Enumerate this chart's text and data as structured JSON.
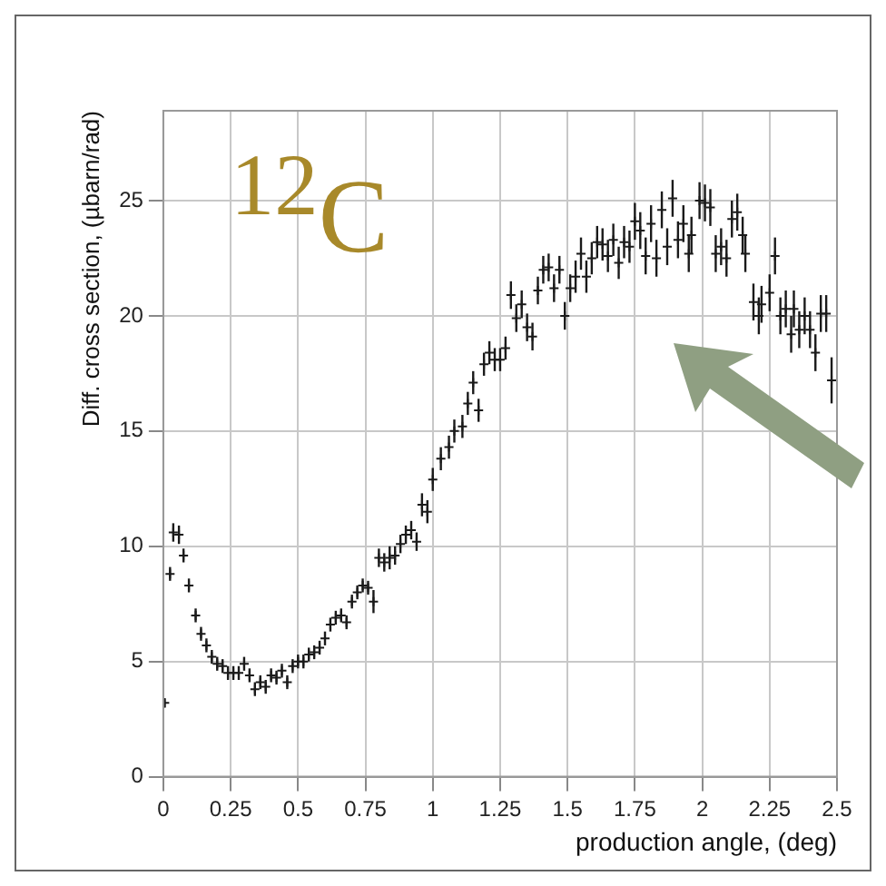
{
  "chart_data": {
    "type": "scatter",
    "xlabel": "production angle, (deg)",
    "ylabel": "Diff. cross section, (µbarn/rad)",
    "annotations": [
      "$^{12}$C"
    ],
    "x": [
      0.005,
      0.025,
      0.037,
      0.058,
      0.075,
      0.095,
      0.12,
      0.14,
      0.16,
      0.18,
      0.2,
      0.22,
      0.24,
      0.26,
      0.28,
      0.3,
      0.32,
      0.34,
      0.36,
      0.38,
      0.4,
      0.42,
      0.44,
      0.46,
      0.48,
      0.5,
      0.52,
      0.54,
      0.56,
      0.58,
      0.6,
      0.62,
      0.64,
      0.66,
      0.68,
      0.7,
      0.72,
      0.74,
      0.76,
      0.78,
      0.8,
      0.82,
      0.84,
      0.86,
      0.88,
      0.9,
      0.92,
      0.94,
      0.96,
      0.98,
      1.0,
      1.03,
      1.06,
      1.08,
      1.11,
      1.13,
      1.15,
      1.17,
      1.19,
      1.21,
      1.23,
      1.25,
      1.27,
      1.29,
      1.31,
      1.33,
      1.35,
      1.37,
      1.39,
      1.41,
      1.43,
      1.45,
      1.47,
      1.49,
      1.51,
      1.53,
      1.55,
      1.57,
      1.59,
      1.61,
      1.63,
      1.65,
      1.67,
      1.69,
      1.71,
      1.73,
      1.75,
      1.77,
      1.79,
      1.81,
      1.83,
      1.85,
      1.87,
      1.89,
      1.91,
      1.93,
      1.95,
      1.96,
      1.99,
      2.01,
      2.03,
      2.05,
      2.07,
      2.09,
      2.11,
      2.13,
      2.15,
      2.16,
      2.19,
      2.21,
      2.22,
      2.25,
      2.27,
      2.29,
      2.31,
      2.33,
      2.34,
      2.36,
      2.38,
      2.4,
      2.42,
      2.44,
      2.46,
      2.48
    ],
    "values": [
      3.2,
      8.8,
      10.6,
      10.5,
      9.6,
      8.3,
      7.0,
      6.2,
      5.7,
      5.2,
      4.9,
      4.8,
      4.5,
      4.5,
      4.5,
      4.9,
      4.4,
      3.8,
      4.1,
      3.9,
      4.4,
      4.3,
      4.6,
      4.1,
      4.8,
      5.0,
      5.0,
      5.3,
      5.4,
      5.6,
      6.0,
      6.6,
      6.9,
      7.0,
      6.7,
      7.6,
      8.0,
      8.3,
      8.2,
      7.6,
      9.5,
      9.3,
      9.5,
      9.6,
      10.1,
      10.5,
      10.7,
      10.2,
      11.8,
      11.5,
      12.9,
      13.8,
      14.3,
      15.0,
      15.2,
      16.2,
      17.1,
      15.9,
      17.9,
      18.4,
      18.1,
      18.1,
      18.6,
      20.9,
      19.9,
      20.5,
      19.5,
      19.1,
      21.1,
      22.0,
      22.1,
      21.2,
      22.0,
      20.0,
      21.2,
      21.7,
      22.7,
      21.7,
      22.5,
      23.2,
      23.1,
      22.6,
      23.3,
      22.3,
      23.2,
      23.0,
      24.1,
      23.7,
      22.6,
      24.0,
      22.5,
      24.6,
      23.0,
      25.1,
      23.3,
      24.0,
      22.7,
      23.5,
      25.0,
      24.9,
      24.7,
      22.7,
      23.0,
      22.5,
      24.2,
      24.5,
      23.5,
      22.7,
      20.6,
      20.0,
      20.5,
      21.0,
      22.6,
      20.0,
      20.3,
      19.2,
      20.3,
      19.4,
      20.0,
      19.4,
      18.4,
      20.1,
      20.1,
      17.2
    ],
    "errors": [
      0.2,
      0.3,
      0.4,
      0.4,
      0.3,
      0.3,
      0.3,
      0.3,
      0.3,
      0.3,
      0.3,
      0.3,
      0.3,
      0.3,
      0.3,
      0.3,
      0.3,
      0.3,
      0.3,
      0.3,
      0.3,
      0.3,
      0.3,
      0.3,
      0.3,
      0.3,
      0.3,
      0.3,
      0.3,
      0.3,
      0.3,
      0.3,
      0.3,
      0.3,
      0.3,
      0.3,
      0.3,
      0.3,
      0.3,
      0.5,
      0.4,
      0.4,
      0.5,
      0.4,
      0.4,
      0.4,
      0.4,
      0.4,
      0.5,
      0.5,
      0.5,
      0.5,
      0.5,
      0.5,
      0.5,
      0.5,
      0.5,
      0.5,
      0.5,
      0.5,
      0.5,
      0.5,
      0.5,
      0.6,
      0.6,
      0.6,
      0.6,
      0.6,
      0.6,
      0.6,
      0.6,
      0.6,
      0.6,
      0.6,
      0.6,
      0.7,
      0.7,
      0.7,
      0.7,
      0.7,
      0.7,
      0.7,
      0.7,
      0.7,
      0.7,
      0.7,
      0.8,
      0.8,
      0.8,
      0.8,
      0.8,
      0.8,
      0.8,
      0.8,
      0.8,
      0.8,
      0.8,
      0.8,
      0.8,
      0.8,
      0.8,
      0.8,
      0.8,
      0.8,
      0.8,
      0.8,
      0.8,
      0.8,
      0.8,
      0.8,
      0.8,
      0.8,
      0.8,
      0.8,
      0.8,
      0.8,
      0.8,
      0.8,
      0.8,
      0.8,
      0.8,
      0.8,
      0.8,
      1.0
    ],
    "color": "#1a1a1a",
    "marker": "cross",
    "grid": true,
    "xlim": [
      0,
      2.5
    ],
    "xticks": [
      0,
      0.25,
      0.5,
      0.75,
      1,
      1.25,
      1.5,
      1.75,
      2,
      2.25,
      2.5
    ],
    "ylim": [
      0,
      28.9
    ],
    "yticks": [
      0,
      5,
      10,
      15,
      20,
      25
    ]
  }
}
